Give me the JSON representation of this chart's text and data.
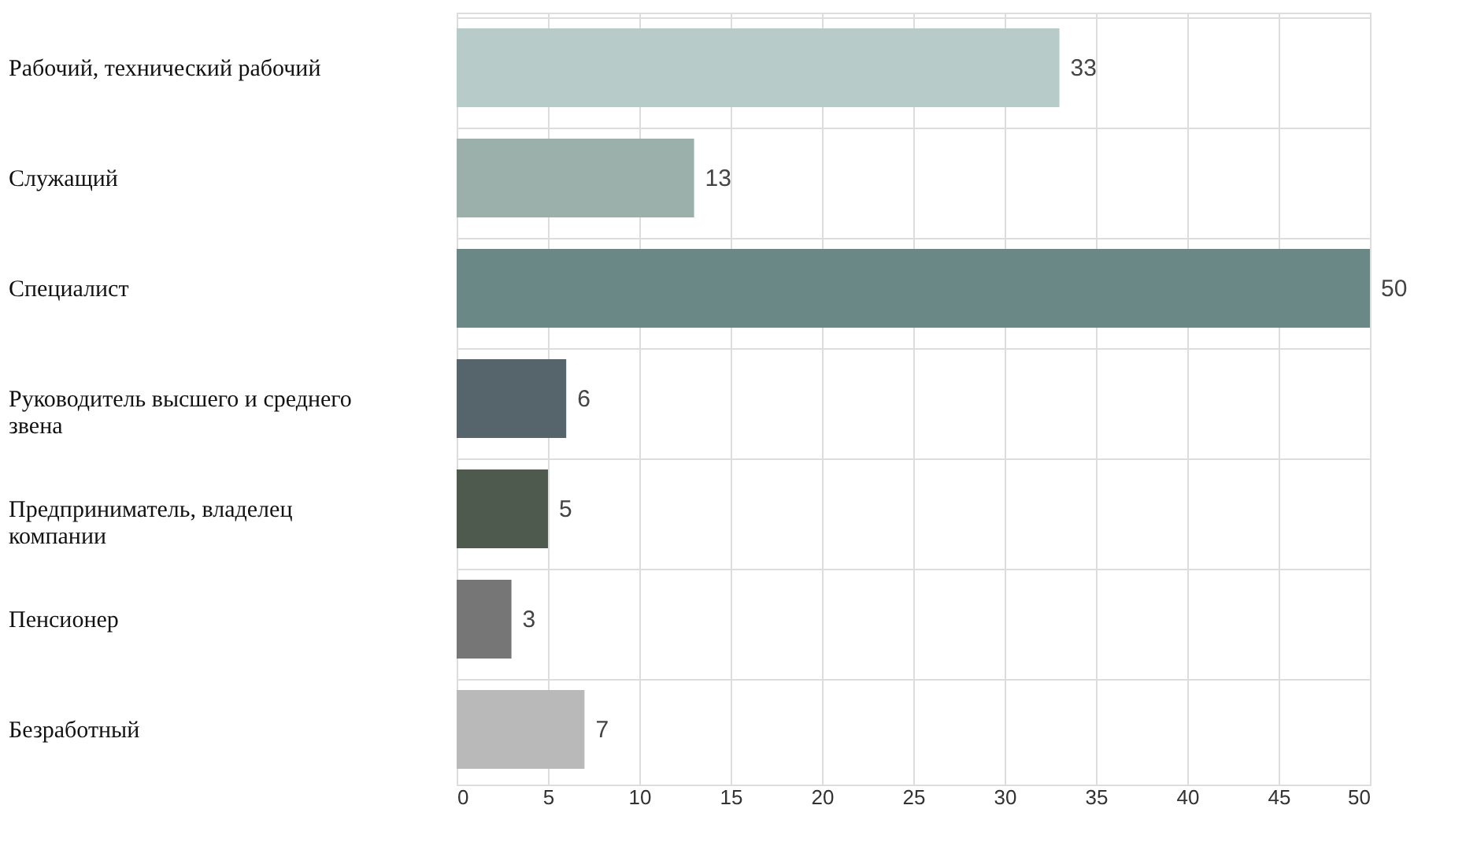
{
  "chart_data": {
    "type": "bar",
    "orientation": "horizontal",
    "categories": [
      "Рабочий, технический рабочий",
      "Служащий",
      "Специалист",
      "Руководитель высшего и среднего звена",
      "Предприниматель, владелец компании",
      "Пенсионер",
      "Безработный"
    ],
    "values": [
      33,
      13,
      50,
      6,
      5,
      3,
      7
    ],
    "colors": [
      "#b7ccc8",
      "#9bafab",
      "#6a8885",
      "#56646c",
      "#4f5a4f",
      "#767676",
      "#b9b9ba"
    ],
    "xlim": [
      0,
      50
    ],
    "xticks": [
      0,
      5,
      10,
      15,
      20,
      25,
      30,
      35,
      40,
      45,
      50
    ],
    "grid": true,
    "data_labels": true
  }
}
